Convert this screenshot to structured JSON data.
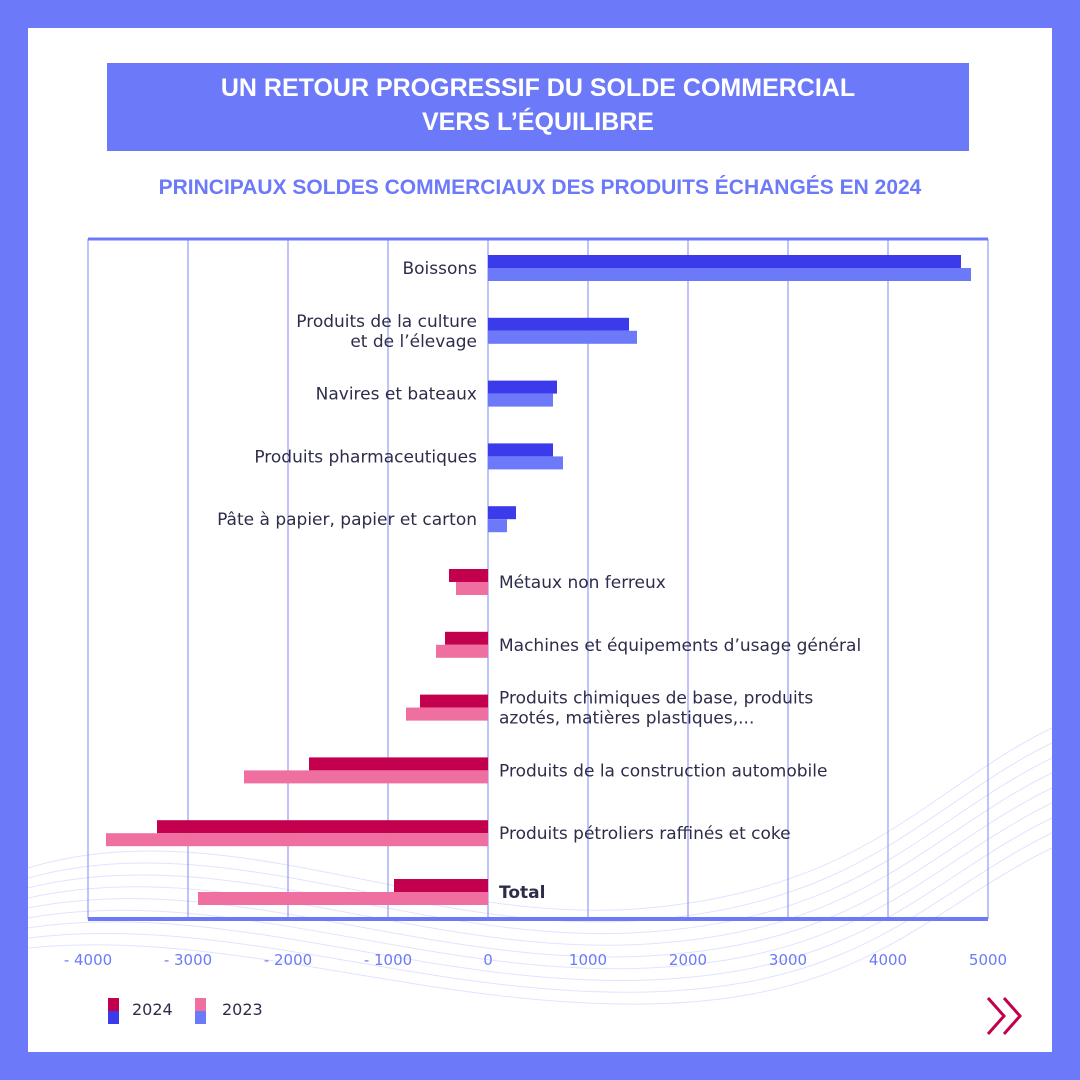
{
  "title": {
    "line1": "UN RETOUR PROGRESSIF DU SOLDE COMMERCIAL",
    "line2": "VERS L’ÉQUILIBRE"
  },
  "subtitle": "PRINCIPAUX SOLDES COMMERCIAUX DES PRODUITS ÉCHANGÉS EN 2024",
  "colors": {
    "background": "#6C79F8",
    "accent": "#6C79F8",
    "positive_2024": "#3B3BEB",
    "positive_2023": "#6C79F8",
    "negative_2024": "#C2004D",
    "negative_2023": "#EE6FA0",
    "text": "#2d2d4a"
  },
  "legend": {
    "items": [
      {
        "label": "2024"
      },
      {
        "label": "2023"
      }
    ]
  },
  "chart_data": {
    "type": "bar",
    "orientation": "horizontal",
    "title": "PRINCIPAUX SOLDES COMMERCIAUX DES PRODUITS ÉCHANGÉS EN 2024",
    "xlim": [
      -4000,
      5000
    ],
    "xticks": [
      -4000,
      -3000,
      -2000,
      -1000,
      0,
      1000,
      2000,
      3000,
      4000,
      5000
    ],
    "xtick_labels": [
      "- 4000",
      "- 3000",
      "- 2000",
      "- 1000",
      "0",
      "1000",
      "2000",
      "3000",
      "4000",
      "5000"
    ],
    "grid": true,
    "legend_position": "bottom-left",
    "categories": [
      [
        "Boissons"
      ],
      [
        "Produits de la culture",
        "et de l’élevage"
      ],
      [
        "Navires et bateaux"
      ],
      [
        "Produits pharmaceutiques"
      ],
      [
        "Pâte à papier, papier et carton"
      ],
      [
        "Métaux non ferreux"
      ],
      [
        "Machines et équipements d’usage général"
      ],
      [
        "Produits chimiques de base, produits",
        "azotés, matières plastiques,..."
      ],
      [
        "Produits de la construction automobile"
      ],
      [
        "Produits pétroliers raffinés et coke"
      ],
      [
        "Total"
      ]
    ],
    "series": [
      {
        "name": "2024",
        "values": [
          4730,
          1410,
          690,
          650,
          280,
          -390,
          -430,
          -680,
          -1790,
          -3310,
          -940
        ]
      },
      {
        "name": "2023",
        "values": [
          4830,
          1490,
          650,
          750,
          190,
          -320,
          -520,
          -820,
          -2440,
          -3820,
          -2900
        ]
      }
    ]
  }
}
